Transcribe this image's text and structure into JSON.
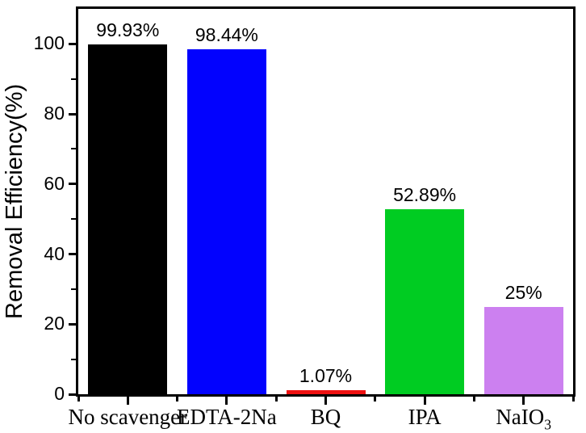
{
  "chart_data": {
    "type": "bar",
    "title": "",
    "xlabel": "",
    "ylabel": "Removal Efficiency(%)",
    "categories": [
      "No scavenger",
      "EDTA-2Na",
      "BQ",
      "IPA",
      "NaIO3"
    ],
    "values": [
      99.93,
      98.44,
      1.07,
      52.89,
      25
    ],
    "value_labels": [
      "99.93%",
      "98.44%",
      "1.07%",
      "52.89%",
      "25%"
    ],
    "bar_colors": [
      "#000000",
      "#0202FE",
      "#EE1111",
      "#00CC22",
      "#CC80F0"
    ],
    "ylim": [
      0,
      110
    ],
    "yticks": [
      0,
      20,
      40,
      60,
      80,
      100
    ],
    "yticks_minor": [
      10,
      30,
      50,
      70,
      90
    ],
    "grid": false,
    "legend": null,
    "frame_color": "#000000",
    "background_color": "#ffffff"
  }
}
